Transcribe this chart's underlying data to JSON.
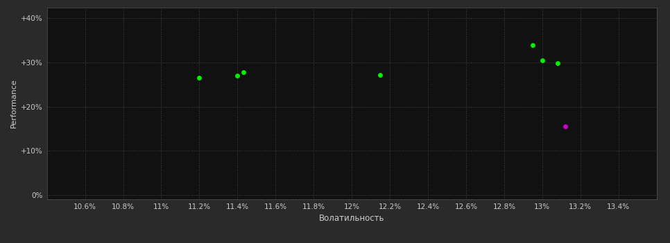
{
  "background_color": "#2a2a2a",
  "plot_bg_color": "#111111",
  "grid_color": "#444444",
  "tick_color": "#cccccc",
  "label_color": "#cccccc",
  "xlabel": "Волатильность",
  "ylabel": "Performance",
  "xlim": [
    0.104,
    0.136
  ],
  "ylim": [
    -0.01,
    0.425
  ],
  "xticks": [
    0.106,
    0.108,
    0.11,
    0.112,
    0.114,
    0.116,
    0.118,
    0.12,
    0.122,
    0.124,
    0.126,
    0.128,
    0.13,
    0.132,
    0.134
  ],
  "yticks": [
    0.0,
    0.1,
    0.2,
    0.3,
    0.4
  ],
  "ytick_labels": [
    "0%",
    "+10%",
    "+20%",
    "+30%",
    "+40%"
  ],
  "xtick_labels": [
    "10.6%",
    "10.8%",
    "11%",
    "11.2%",
    "11.4%",
    "11.6%",
    "11.8%",
    "12%",
    "12.2%",
    "12.4%",
    "12.6%",
    "12.8%",
    "13%",
    "13.2%",
    "13.4%"
  ],
  "green_points": [
    [
      0.112,
      0.265
    ],
    [
      0.114,
      0.27
    ],
    [
      0.1143,
      0.278
    ],
    [
      0.1215,
      0.272
    ],
    [
      0.1295,
      0.34
    ],
    [
      0.13,
      0.305
    ],
    [
      0.1308,
      0.298
    ]
  ],
  "magenta_points": [
    [
      0.1312,
      0.155
    ]
  ],
  "green_color": "#00ee00",
  "magenta_color": "#cc00cc",
  "marker_size": 5
}
